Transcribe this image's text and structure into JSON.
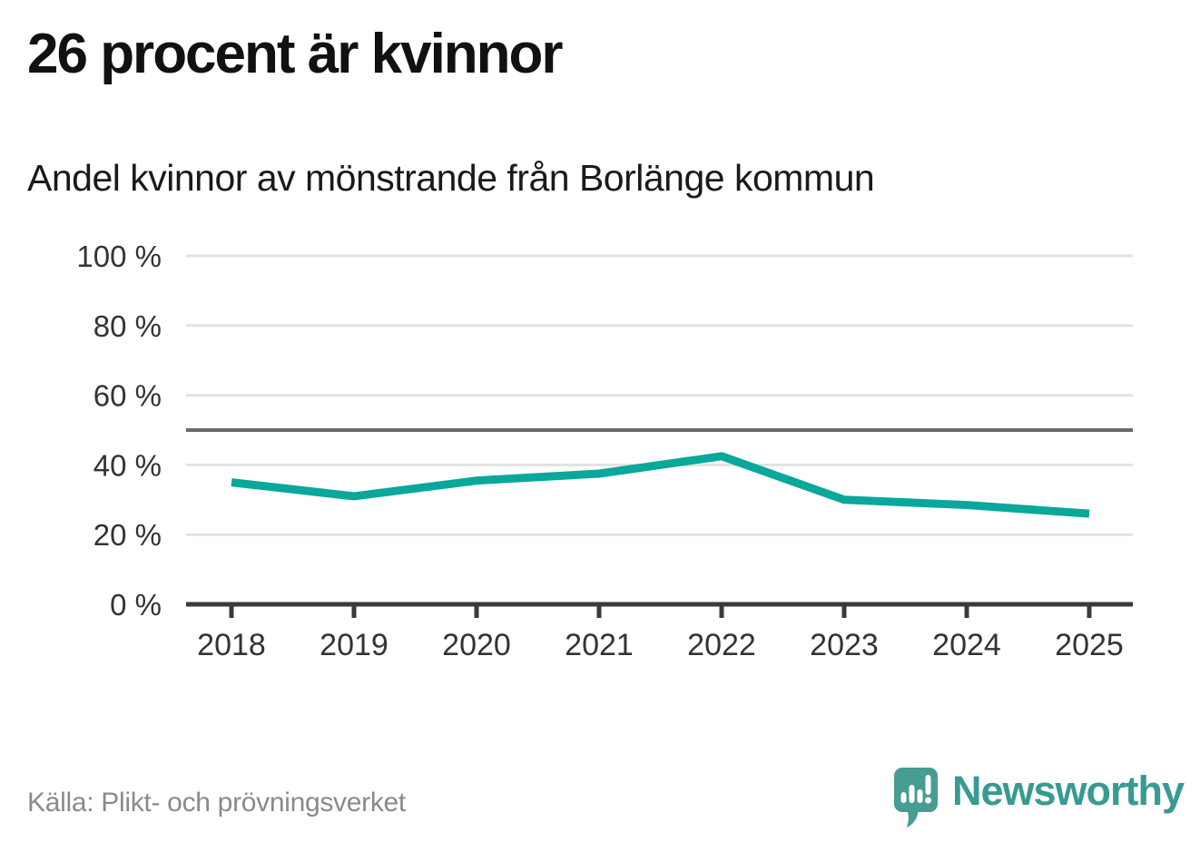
{
  "header": {
    "title": "26 procent är kvinnor",
    "subtitle": "Andel kvinnor av mönstrande från Borlänge kommun"
  },
  "chart_data": {
    "type": "line",
    "title": "26 procent är kvinnor",
    "subtitle": "Andel kvinnor av mönstrande från Borlänge kommun",
    "categories": [
      "2018",
      "2019",
      "2020",
      "2021",
      "2022",
      "2023",
      "2024",
      "2025"
    ],
    "values": [
      35,
      31,
      35.5,
      37.5,
      42.5,
      30,
      28.5,
      26
    ],
    "series_name": "Andel kvinnor av mönstrande",
    "xlabel": "",
    "ylabel": "",
    "ylim": [
      0,
      100
    ],
    "yticks": [
      0,
      20,
      40,
      60,
      80,
      100
    ],
    "ytick_label_suffix": " %",
    "reference_line": 50,
    "grid": true,
    "legend": "none",
    "colors": {
      "line": "#0aa79b",
      "grid": "#e2e2e2",
      "reference": "#6b6b6b",
      "axis": "#3a3a3a",
      "tick_text": "#333333"
    }
  },
  "footer": {
    "source": "Källa: Plikt- och prövningsverket",
    "logo_text": "Newsworthy",
    "logo_icon": "bar-chart-exclamation-bubble-icon",
    "logo_color": "#479c94",
    "logo_text_color": "#399a91"
  }
}
